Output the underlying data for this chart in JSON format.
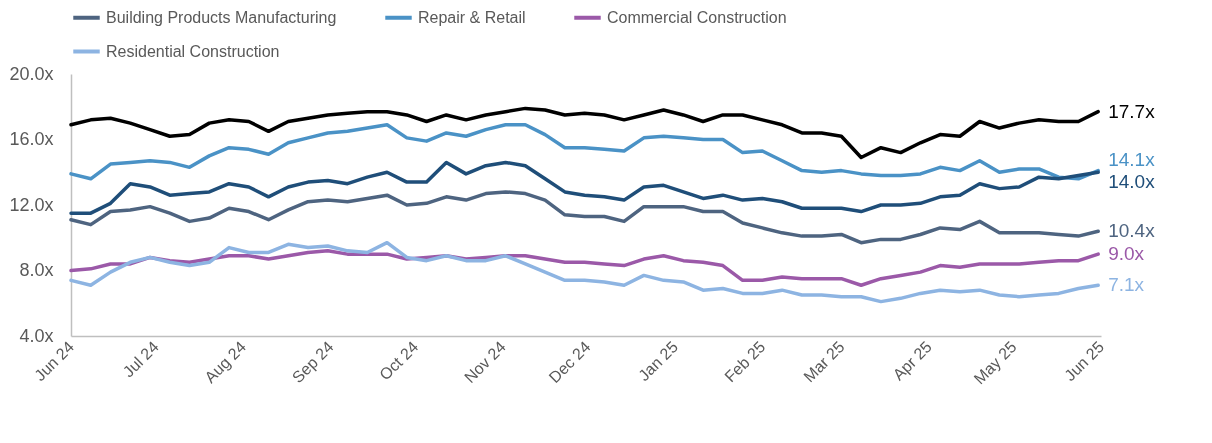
{
  "chart_data": {
    "type": "line",
    "x": [
      "2024-06-07",
      "2024-06-14",
      "2024-06-21",
      "2024-06-28",
      "2024-07-05",
      "2024-07-12",
      "2024-07-19",
      "2024-07-26",
      "2024-08-02",
      "2024-08-09",
      "2024-08-16",
      "2024-08-23",
      "2024-08-30",
      "2024-09-06",
      "2024-09-13",
      "2024-09-20",
      "2024-09-27",
      "2024-10-04",
      "2024-10-11",
      "2024-10-18",
      "2024-10-25",
      "2024-11-01",
      "2024-11-08",
      "2024-11-15",
      "2024-11-22",
      "2024-11-29",
      "2024-12-06",
      "2024-12-13",
      "2024-12-20",
      "2024-12-27",
      "2025-01-03",
      "2025-01-10",
      "2025-01-17",
      "2025-01-24",
      "2025-01-31",
      "2025-02-07",
      "2025-02-14",
      "2025-02-21",
      "2025-02-28",
      "2025-03-07",
      "2025-03-14",
      "2025-03-21",
      "2025-03-28",
      "2025-04-04",
      "2025-04-11",
      "2025-04-18",
      "2025-04-25",
      "2025-05-02",
      "2025-05-09",
      "2025-05-16",
      "2025-05-23",
      "2025-05-30",
      "2025-06-06"
    ],
    "series": [
      {
        "name": "Building Products Manufacturing",
        "color": "#4e6480",
        "values": [
          11.1,
          10.8,
          11.6,
          11.7,
          11.9,
          11.5,
          11.0,
          11.2,
          11.8,
          11.6,
          11.1,
          11.7,
          12.2,
          12.3,
          12.2,
          12.4,
          12.6,
          12.0,
          12.1,
          12.5,
          12.3,
          12.7,
          12.8,
          12.7,
          12.3,
          11.4,
          11.3,
          11.3,
          11.0,
          11.9,
          11.9,
          11.9,
          11.6,
          11.6,
          10.9,
          10.6,
          10.3,
          10.1,
          10.1,
          10.2,
          9.7,
          9.9,
          9.9,
          10.2,
          10.6,
          10.5,
          11.0,
          10.3,
          10.3,
          10.3,
          10.2,
          10.1,
          10.4
        ]
      },
      {
        "name": "Repair & Retail",
        "color": "#4a92c6",
        "values": [
          13.9,
          13.6,
          14.5,
          14.6,
          14.7,
          14.6,
          14.3,
          15.0,
          15.5,
          15.4,
          15.1,
          15.8,
          16.1,
          16.4,
          16.5,
          16.7,
          16.9,
          16.1,
          15.9,
          16.4,
          16.2,
          16.6,
          16.9,
          16.9,
          16.3,
          15.5,
          15.5,
          15.4,
          15.3,
          16.1,
          16.2,
          16.1,
          16.0,
          16.0,
          15.2,
          15.3,
          14.7,
          14.1,
          14.0,
          14.1,
          13.9,
          13.8,
          13.8,
          13.9,
          14.3,
          14.1,
          14.7,
          14.0,
          14.2,
          14.2,
          13.7,
          13.6,
          14.1
        ]
      },
      {
        "name": "Commercial Construction",
        "color": "#9b59a8",
        "values": [
          8.0,
          8.1,
          8.4,
          8.4,
          8.8,
          8.6,
          8.5,
          8.7,
          8.9,
          8.9,
          8.7,
          8.9,
          9.1,
          9.2,
          9.0,
          9.0,
          9.0,
          8.7,
          8.8,
          8.9,
          8.7,
          8.8,
          8.9,
          8.9,
          8.7,
          8.5,
          8.5,
          8.4,
          8.3,
          8.7,
          8.9,
          8.6,
          8.5,
          8.3,
          7.4,
          7.4,
          7.6,
          7.5,
          7.5,
          7.5,
          7.1,
          7.5,
          7.7,
          7.9,
          8.3,
          8.2,
          8.4,
          8.4,
          8.4,
          8.5,
          8.6,
          8.6,
          9.0
        ]
      },
      {
        "name": "Residential Construction",
        "color": "#8db4e2",
        "values": [
          7.4,
          7.1,
          7.9,
          8.5,
          8.8,
          8.5,
          8.3,
          8.5,
          9.4,
          9.1,
          9.1,
          9.6,
          9.4,
          9.5,
          9.2,
          9.1,
          9.7,
          8.8,
          8.6,
          8.9,
          8.6,
          8.6,
          8.9,
          8.4,
          7.9,
          7.4,
          7.4,
          7.3,
          7.1,
          7.7,
          7.4,
          7.3,
          6.8,
          6.9,
          6.6,
          6.6,
          6.8,
          6.5,
          6.5,
          6.4,
          6.4,
          6.1,
          6.3,
          6.6,
          6.8,
          6.7,
          6.8,
          6.5,
          6.4,
          6.5,
          6.6,
          6.9,
          7.1
        ]
      },
      {
        "color": "#000000",
        "values": [
          16.9,
          17.2,
          17.3,
          17.0,
          16.6,
          16.2,
          16.3,
          17.0,
          17.2,
          17.1,
          16.5,
          17.1,
          17.3,
          17.5,
          17.6,
          17.7,
          17.7,
          17.5,
          17.1,
          17.5,
          17.2,
          17.5,
          17.7,
          17.9,
          17.8,
          17.5,
          17.6,
          17.5,
          17.2,
          17.5,
          17.8,
          17.5,
          17.1,
          17.5,
          17.5,
          17.2,
          16.9,
          16.4,
          16.4,
          16.2,
          14.9,
          15.5,
          15.2,
          15.8,
          16.3,
          16.2,
          17.1,
          16.7,
          17.0,
          17.2,
          17.1,
          17.1,
          17.7
        ]
      },
      {
        "color": "#1f4e79",
        "values": [
          11.5,
          11.5,
          12.1,
          13.3,
          13.1,
          12.6,
          12.7,
          12.8,
          13.3,
          13.1,
          12.5,
          13.1,
          13.4,
          13.5,
          13.3,
          13.7,
          14.0,
          13.4,
          13.4,
          14.6,
          13.9,
          14.4,
          14.6,
          14.4,
          13.6,
          12.8,
          12.6,
          12.5,
          12.3,
          13.1,
          13.2,
          12.8,
          12.4,
          12.6,
          12.3,
          12.4,
          12.2,
          11.8,
          11.8,
          11.8,
          11.6,
          12.0,
          12.0,
          12.1,
          12.5,
          12.6,
          13.3,
          13.0,
          13.1,
          13.7,
          13.6,
          13.8,
          14.0
        ]
      }
    ],
    "xlim": [
      "2024-06-07",
      "2025-06-07"
    ],
    "xticks": [
      {
        "value": "2024-06-07",
        "label": "Jun 24"
      },
      {
        "value": "2024-07-07",
        "label": "Jul 24"
      },
      {
        "value": "2024-08-07",
        "label": "Aug 24"
      },
      {
        "value": "2024-09-07",
        "label": "Sep 24"
      },
      {
        "value": "2024-10-07",
        "label": "Oct 24"
      },
      {
        "value": "2024-11-07",
        "label": "Nov 24"
      },
      {
        "value": "2024-12-07",
        "label": "Dec 24"
      },
      {
        "value": "2025-01-07",
        "label": "Jan 25"
      },
      {
        "value": "2025-02-07",
        "label": "Feb 25"
      },
      {
        "value": "2025-03-07",
        "label": "Mar 25"
      },
      {
        "value": "2025-04-07",
        "label": "Apr 25"
      },
      {
        "value": "2025-05-07",
        "label": "May 25"
      },
      {
        "value": "2025-06-07",
        "label": "Jun 25"
      }
    ],
    "ylim": [
      4,
      20
    ],
    "yticks": [
      {
        "value": 4,
        "label": "4.0x"
      },
      {
        "value": 8,
        "label": "8.0x"
      },
      {
        "value": 12,
        "label": "12.0x"
      },
      {
        "value": 16,
        "label": "16.0x"
      },
      {
        "value": 20,
        "label": "20.0x"
      }
    ],
    "annotations": [
      {
        "text": "17.7x",
        "x": "2025-06-06",
        "y": 17.7
      },
      {
        "text": "14.1x",
        "x": "2025-06-06",
        "y": 14.1
      },
      {
        "text": "14.0x",
        "x": "2025-06-06",
        "y": 14.0
      },
      {
        "text": "10.4x",
        "x": "2025-06-06",
        "y": 10.4
      },
      {
        "text": "9.0x",
        "x": "2025-06-06",
        "y": 9.0
      },
      {
        "text": "7.1x",
        "x": "2025-06-06",
        "y": 7.1
      }
    ],
    "grid": false,
    "legend": "top",
    "marker": "none",
    "line_style": "solid"
  }
}
